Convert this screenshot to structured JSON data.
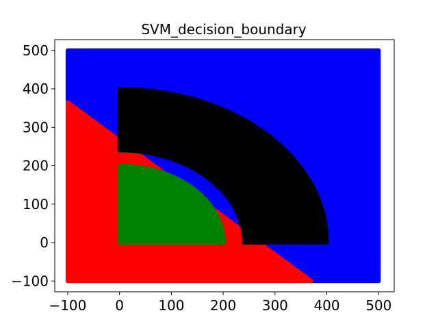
{
  "chart_data": {
    "type": "scatter",
    "title": "SVM_decision_boundary",
    "xlabel": "",
    "ylabel": "",
    "xlim": [
      -125,
      530
    ],
    "ylim": [
      -128,
      528
    ],
    "x_ticks": [
      -100,
      0,
      100,
      200,
      300,
      400,
      500
    ],
    "y_ticks": [
      -100,
      0,
      100,
      200,
      300,
      400,
      500
    ],
    "grid": false,
    "legend": "none",
    "colors": {
      "region_upper": "#0000ff",
      "region_lower": "#ff0000",
      "class_outer_ring": "#000000",
      "class_inner_quarter": "#008000"
    },
    "decision_boundary_line": [
      [
        -100,
        365
      ],
      [
        370,
        -100
      ]
    ],
    "sample_grid_extent": {
      "x": [
        -100,
        500
      ],
      "y": [
        -100,
        500
      ]
    },
    "regions": [
      {
        "color": "#0000ff",
        "description_points": [
          [
            -100,
            500
          ],
          [
            500,
            500
          ],
          [
            500,
            -100
          ],
          [
            370,
            -100
          ],
          [
            -100,
            365
          ]
        ]
      },
      {
        "color": "#ff0000",
        "description_points": [
          [
            -100,
            365
          ],
          [
            370,
            -100
          ],
          [
            -100,
            -100
          ]
        ]
      }
    ],
    "classes": [
      {
        "color": "#000000",
        "shape": "quarter-annulus",
        "center": [
          0,
          0
        ],
        "r_inner": 240,
        "r_outer": 400,
        "x_min": 0,
        "y_min": 0
      },
      {
        "color": "#008000",
        "shape": "quarter-disk",
        "center": [
          0,
          0
        ],
        "r_outer": 200,
        "x_min": 0,
        "y_min": 0
      }
    ]
  }
}
